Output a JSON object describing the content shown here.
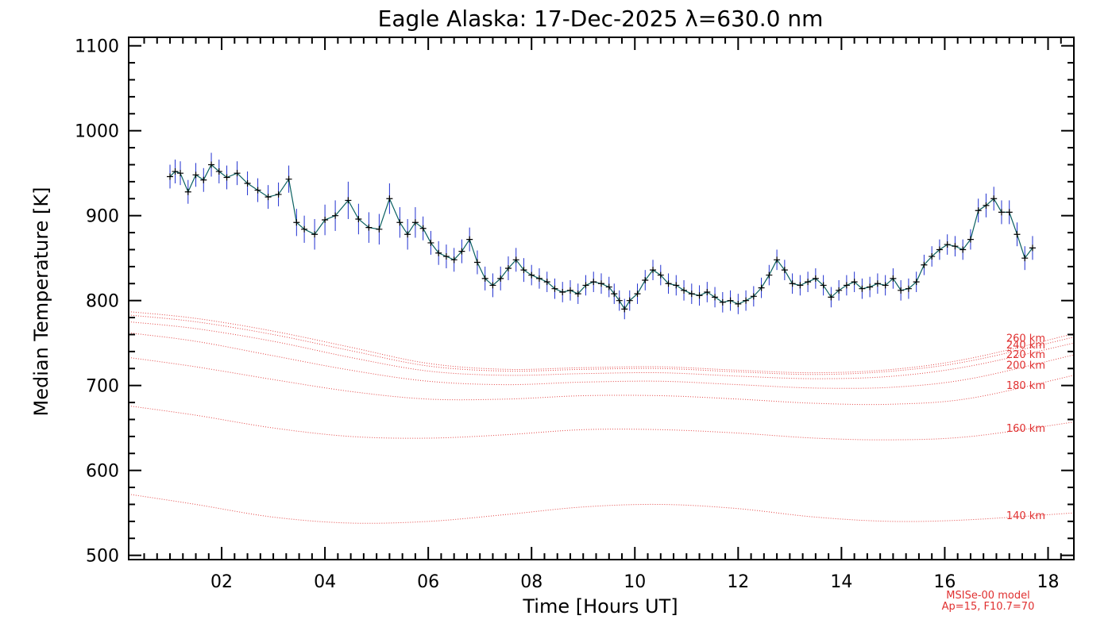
{
  "chart_data": {
    "type": "line",
    "title": "Eagle Alaska: 17-Dec-2025 λ=630.0 nm",
    "xlabel": "Time [Hours UT]",
    "ylabel": "Median Temperature [K]",
    "xlim": [
      0.2,
      18.5
    ],
    "ylim": [
      495,
      1110
    ],
    "xticks": [
      2,
      4,
      6,
      8,
      10,
      12,
      14,
      16,
      18
    ],
    "xtick_labels": [
      "02",
      "04",
      "06",
      "08",
      "10",
      "12",
      "14",
      "16",
      "18"
    ],
    "yticks": [
      500,
      600,
      700,
      800,
      900,
      1000,
      1100
    ],
    "ytick_labels": [
      "500",
      "600",
      "700",
      "800",
      "900",
      "1000",
      "1100"
    ],
    "colors": {
      "data_line": "#0a6060",
      "error_bar": "#2030d0",
      "marker": "#000000",
      "model": "#e03030"
    },
    "measured": {
      "name": "Median temperature",
      "x": [
        1.0,
        1.1,
        1.2,
        1.35,
        1.5,
        1.65,
        1.8,
        1.95,
        2.1,
        2.3,
        2.5,
        2.7,
        2.9,
        3.1,
        3.3,
        3.45,
        3.6,
        3.8,
        4.0,
        4.2,
        4.45,
        4.65,
        4.85,
        5.05,
        5.25,
        5.45,
        5.6,
        5.75,
        5.9,
        6.05,
        6.2,
        6.35,
        6.5,
        6.65,
        6.8,
        6.95,
        7.1,
        7.25,
        7.4,
        7.55,
        7.7,
        7.85,
        8.0,
        8.15,
        8.3,
        8.45,
        8.6,
        8.75,
        8.9,
        9.05,
        9.2,
        9.35,
        9.5,
        9.6,
        9.7,
        9.8,
        9.9,
        10.05,
        10.2,
        10.35,
        10.5,
        10.65,
        10.8,
        10.95,
        11.1,
        11.25,
        11.4,
        11.55,
        11.7,
        11.85,
        12.0,
        12.15,
        12.3,
        12.45,
        12.6,
        12.75,
        12.9,
        13.05,
        13.2,
        13.35,
        13.5,
        13.65,
        13.8,
        13.95,
        14.1,
        14.25,
        14.4,
        14.55,
        14.7,
        14.85,
        15.0,
        15.15,
        15.3,
        15.45,
        15.6,
        15.75,
        15.9,
        16.05,
        16.2,
        16.35,
        16.5,
        16.65,
        16.8,
        16.95,
        17.1,
        17.25,
        17.4,
        17.55,
        17.7
      ],
      "y": [
        946,
        952,
        950,
        928,
        948,
        942,
        960,
        952,
        945,
        950,
        938,
        930,
        922,
        925,
        943,
        892,
        884,
        878,
        895,
        900,
        918,
        896,
        886,
        884,
        920,
        892,
        878,
        892,
        885,
        868,
        856,
        852,
        848,
        858,
        872,
        845,
        826,
        818,
        826,
        838,
        848,
        836,
        830,
        826,
        822,
        814,
        810,
        812,
        808,
        818,
        822,
        820,
        816,
        808,
        800,
        790,
        800,
        808,
        824,
        836,
        830,
        820,
        818,
        812,
        808,
        806,
        810,
        804,
        798,
        800,
        796,
        800,
        805,
        815,
        830,
        848,
        836,
        820,
        818,
        822,
        826,
        818,
        804,
        812,
        818,
        822,
        814,
        816,
        820,
        818,
        826,
        812,
        814,
        822,
        842,
        852,
        860,
        866,
        864,
        860,
        872,
        906,
        912,
        920,
        904,
        904,
        878,
        850,
        862
      ],
      "err": [
        14,
        14,
        14,
        14,
        14,
        14,
        14,
        14,
        14,
        14,
        14,
        14,
        14,
        14,
        16,
        16,
        16,
        18,
        18,
        18,
        22,
        18,
        18,
        18,
        18,
        18,
        18,
        18,
        14,
        14,
        14,
        14,
        14,
        14,
        14,
        14,
        14,
        14,
        14,
        14,
        14,
        14,
        12,
        12,
        12,
        12,
        12,
        12,
        12,
        12,
        12,
        12,
        12,
        12,
        12,
        12,
        12,
        12,
        12,
        12,
        12,
        12,
        12,
        12,
        12,
        12,
        12,
        12,
        12,
        12,
        12,
        12,
        12,
        12,
        12,
        12,
        12,
        12,
        12,
        12,
        12,
        12,
        12,
        12,
        12,
        12,
        12,
        12,
        12,
        12,
        12,
        12,
        12,
        12,
        12,
        12,
        12,
        12,
        12,
        12,
        12,
        14,
        14,
        14,
        14,
        14,
        14,
        14,
        14
      ]
    },
    "model": {
      "name": "MSISe-00 model",
      "note_line1": "MSISe-00 model",
      "note_line2": "Ap=15, F10.7=70",
      "x": [
        0.2,
        1.5,
        3.0,
        4.5,
        6.0,
        7.5,
        9.0,
        10.5,
        12.0,
        13.5,
        15.0,
        16.5,
        18.5
      ],
      "series": [
        {
          "altitude_label": "140 km",
          "values": [
            572,
            560,
            545,
            538,
            540,
            548,
            557,
            560,
            555,
            545,
            540,
            542,
            550
          ]
        },
        {
          "altitude_label": "160 km",
          "values": [
            676,
            665,
            650,
            640,
            638,
            642,
            648,
            648,
            644,
            638,
            636,
            640,
            657
          ]
        },
        {
          "altitude_label": "180 km",
          "values": [
            733,
            722,
            707,
            693,
            684,
            684,
            688,
            688,
            684,
            679,
            678,
            685,
            712
          ]
        },
        {
          "altitude_label": "200 km",
          "values": [
            762,
            752,
            735,
            718,
            705,
            701,
            704,
            705,
            701,
            697,
            698,
            708,
            736
          ]
        },
        {
          "altitude_label": "220 km",
          "values": [
            775,
            767,
            752,
            733,
            717,
            712,
            714,
            715,
            711,
            708,
            711,
            723,
            750
          ]
        },
        {
          "altitude_label": "240 km",
          "values": [
            783,
            775,
            760,
            741,
            723,
            717,
            719,
            720,
            716,
            713,
            717,
            729,
            757
          ]
        },
        {
          "altitude_label": "260 km",
          "values": [
            787,
            779,
            764,
            745,
            726,
            719,
            721,
            722,
            718,
            715,
            719,
            732,
            761
          ]
        }
      ]
    }
  }
}
